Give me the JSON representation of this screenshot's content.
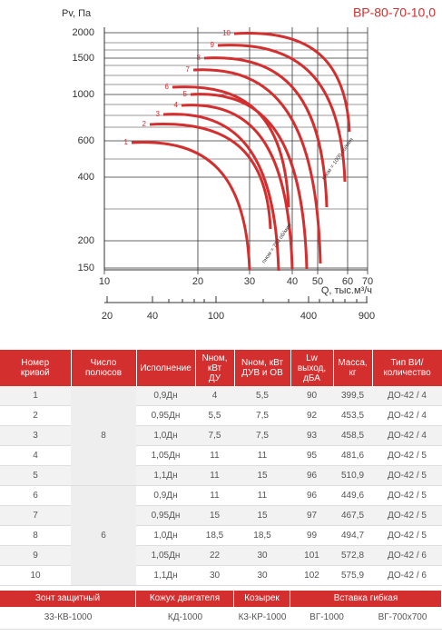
{
  "chart": {
    "title": "ВР-80-70-10,0",
    "y_label": "Pv, Па",
    "x_label": "Q, тыс.м³/ч",
    "yticks": [
      2000,
      1500,
      1000,
      600,
      400,
      200,
      150
    ],
    "xticks": [
      10,
      20,
      30,
      40,
      50,
      60,
      70
    ],
    "x2ticks": [
      20,
      40,
      100,
      400,
      900
    ],
    "curve_labels": [
      "1",
      "2",
      "3",
      "4",
      "5",
      "6",
      "7",
      "8",
      "9",
      "10"
    ],
    "speed_labels": [
      "nном = 750 об/мин",
      "nном = 1000 об/мин"
    ]
  },
  "table": {
    "headers": [
      "Номер\nкривой",
      "Число\nполюсов",
      "Исполнение",
      "Nном,\nкВт\nДУ",
      "Nном, кВт\nДУВ и ОВ",
      "Lw\nвыход,\nдБА",
      "Масса,\nкг",
      "Тип ВИ/\nколичество"
    ],
    "poles": [
      "8",
      "6"
    ],
    "rows": [
      [
        "1",
        "0,9Дн",
        "4",
        "5,5",
        "90",
        "399,5",
        "ДО-42 / 4"
      ],
      [
        "2",
        "0,95Дн",
        "5,5",
        "7,5",
        "92",
        "453,5",
        "ДО-42 / 4"
      ],
      [
        "3",
        "1,0Дн",
        "7,5",
        "7,5",
        "93",
        "458,5",
        "ДО-42 / 4"
      ],
      [
        "4",
        "1,05Дн",
        "11",
        "11",
        "95",
        "481,6",
        "ДО-42 / 5"
      ],
      [
        "5",
        "1,1Дн",
        "11",
        "15",
        "96",
        "510,9",
        "ДО-42 / 5"
      ],
      [
        "6",
        "0,9Дн",
        "11",
        "11",
        "96",
        "449,6",
        "ДО-42 / 5"
      ],
      [
        "7",
        "0,95Дн",
        "15",
        "15",
        "97",
        "467,5",
        "ДО-42 / 5"
      ],
      [
        "8",
        "1,0Дн",
        "18,5",
        "18,5",
        "99",
        "494,7",
        "ДО-42 / 5"
      ],
      [
        "9",
        "1,05Дн",
        "22",
        "30",
        "101",
        "572,8",
        "ДО-42 / 6"
      ],
      [
        "10",
        "1,1Дн",
        "30",
        "30",
        "102",
        "575,9",
        "ДО-42 / 6"
      ]
    ]
  },
  "accessories": {
    "headers": [
      "Зонт защитный",
      "Кожух двигателя",
      "Козырек",
      "Вставка гибкая"
    ],
    "values": [
      "33-КВ-1000",
      "КД-1000",
      "К3-КР-1000",
      "ВГ-1000",
      "ВГ-700х700"
    ]
  }
}
